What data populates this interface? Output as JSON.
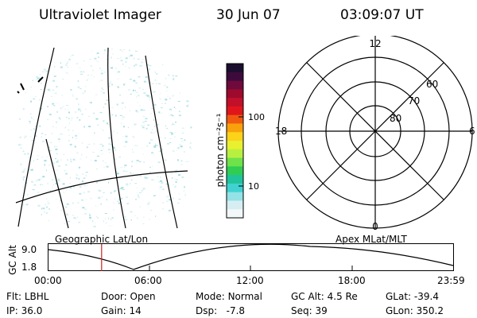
{
  "header": {
    "instrument": "Ultraviolet Imager",
    "date": "30 Jun 07",
    "time": "03:09:07 UT"
  },
  "colorbar": {
    "label": "photon cm⁻²s⁻¹",
    "ticks": [
      "100",
      "10"
    ],
    "colors": [
      "#1a0f2e",
      "#3d0a3c",
      "#6e0a3c",
      "#9d0a2e",
      "#c2102a",
      "#e0161c",
      "#f05a10",
      "#f9a00d",
      "#fdd21a",
      "#e8f030",
      "#b8f040",
      "#6ee24a",
      "#2fcd52",
      "#20c39a",
      "#3fd2d0",
      "#92e2e6",
      "#d6eef2",
      "#f2f7f8"
    ]
  },
  "polar": {
    "hour_labels": [
      "12",
      "18",
      "6",
      "0"
    ],
    "lat_labels": [
      "60",
      "70",
      "80"
    ]
  },
  "timeline": {
    "left_label": "Geographic Lat/Lon",
    "right_label": "Apex MLat/MLT",
    "axis_title": "GC Alt",
    "y_ticks": [
      "9.0",
      "1.8"
    ],
    "x_ticks": [
      "00:00",
      "06:00",
      "12:00",
      "18:00",
      "23:59"
    ],
    "marker_time_hours": 3.15,
    "marker_color": "#cc2222"
  },
  "status": {
    "row1": [
      {
        "key": "Flt:",
        "value": "LBHL"
      },
      {
        "key": "Door:",
        "value": "Open"
      },
      {
        "key": "Mode:",
        "value": "Normal"
      },
      {
        "key": "GC Alt:",
        "value": "4.5 Re"
      },
      {
        "key": "GLat:",
        "value": "-39.4"
      }
    ],
    "row2": [
      {
        "key": "IP:",
        "value": "36.0"
      },
      {
        "key": "Gain:",
        "value": "14"
      },
      {
        "key": "Dsp:",
        "value": "-7.8"
      },
      {
        "key": "Seq:",
        "value": "39"
      },
      {
        "key": "GLon:",
        "value": "350.2"
      }
    ]
  }
}
